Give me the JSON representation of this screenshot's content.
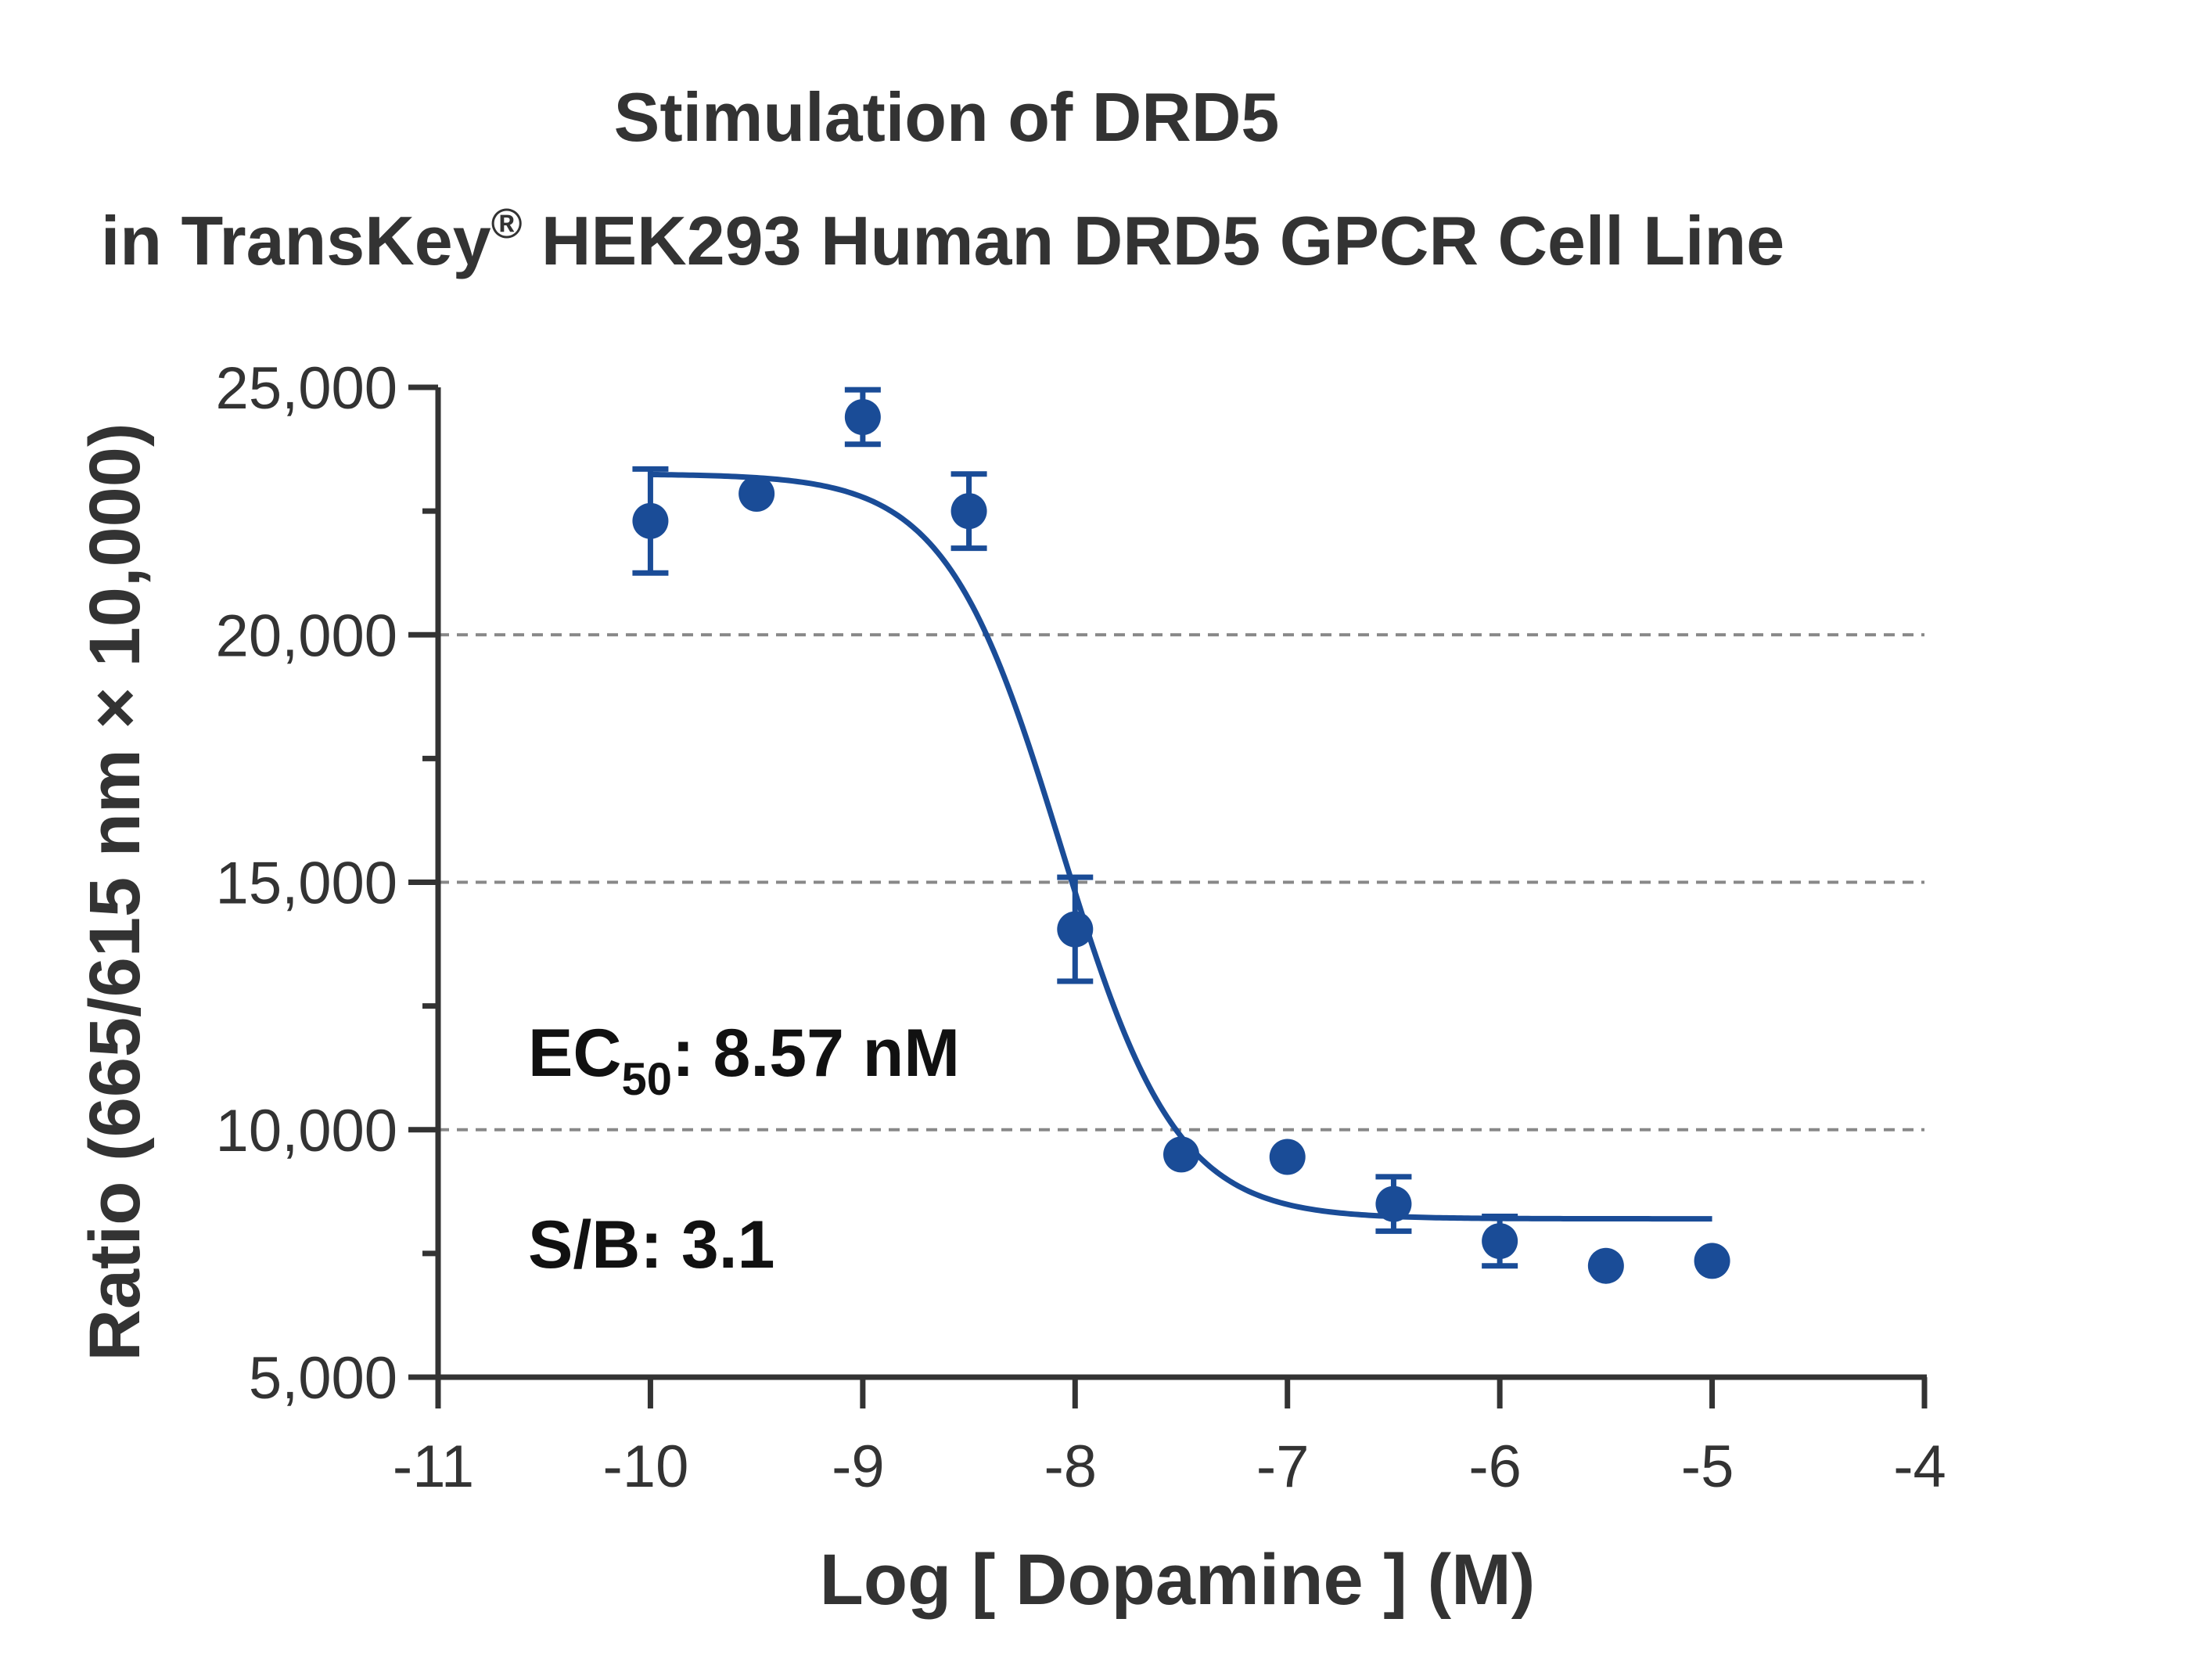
{
  "title": {
    "line1": "Stimulation of  DRD5",
    "line2_pre": "in TransKey",
    "line2_sup": "®",
    "line2_post": " HEK293 Human DRD5 GPCR Cell Line"
  },
  "colors": {
    "series": "#1a4c97",
    "axis": "#333333",
    "grid": "#888888"
  },
  "annotations": {
    "ec50_pre": "EC",
    "ec50_sub": "50",
    "ec50_post": ": 8.57 nM",
    "sb": "S/B: 3.1"
  },
  "chart_data": {
    "type": "scatter",
    "title": "Stimulation of DRD5 in TransKey® HEK293 Human DRD5 GPCR Cell Line",
    "xlabel": "Log [ Dopamine ]  (M)",
    "ylabel": "Ratio (665/615 nm × 10,000)",
    "xlim": [
      -11,
      -4
    ],
    "ylim": [
      5000,
      25000
    ],
    "x_ticks": [
      -11,
      -10,
      -9,
      -8,
      -7,
      -6,
      -5,
      -4
    ],
    "x_tick_labels": [
      "-11",
      "-10",
      "-9",
      "-8",
      "-7",
      "-6",
      "-5",
      "-4"
    ],
    "y_ticks": [
      5000,
      10000,
      15000,
      20000,
      25000
    ],
    "y_tick_labels": [
      "5,000",
      "10,000",
      "15,000",
      "20,000",
      "25,000"
    ],
    "y_minor_ticks": [
      7500,
      12500,
      17500,
      22500
    ],
    "grid": "horizontal dashed at 10,000, 15,000, 20,000",
    "series": [
      {
        "points": [
          {
            "x": -10.0,
            "y": 22300,
            "err": 1050
          },
          {
            "x": -9.5,
            "y": 22850,
            "err": 0
          },
          {
            "x": -9.0,
            "y": 24400,
            "err": 550
          },
          {
            "x": -8.5,
            "y": 22500,
            "err": 750
          },
          {
            "x": -8.0,
            "y": 14050,
            "err": 1050
          },
          {
            "x": -7.5,
            "y": 9500,
            "err": 0
          },
          {
            "x": -7.0,
            "y": 9450,
            "err": 0
          },
          {
            "x": -6.5,
            "y": 8500,
            "err": 550
          },
          {
            "x": -6.0,
            "y": 7750,
            "err": 500
          },
          {
            "x": -5.5,
            "y": 7250,
            "err": 0
          },
          {
            "x": -5.0,
            "y": 7350,
            "err": 0
          }
        ],
        "fit": {
          "model": "four-parameter logistic",
          "top": 23250,
          "bottom": 8200,
          "logEC50": -8.067,
          "hill": -1.6,
          "x_range": [
            -10.0,
            -5.0
          ]
        }
      }
    ]
  }
}
